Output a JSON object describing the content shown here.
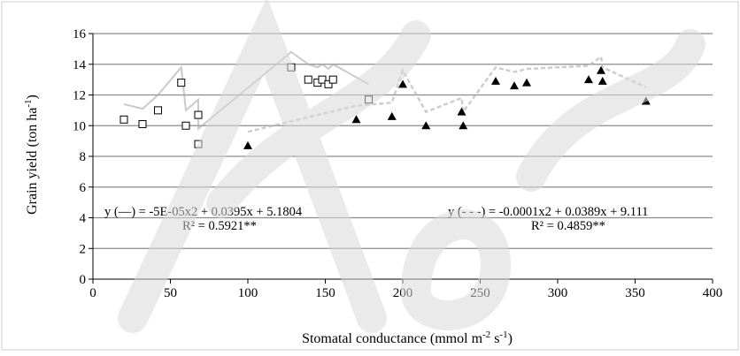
{
  "chart_data": {
    "type": "scatter",
    "xlabel": "Stomatal conductance (mmol m",
    "xlabel_sup1": "-2",
    "xlabel_mid": " s",
    "xlabel_sup2": "-1",
    "xlabel_end": ")",
    "ylabel": "Grain yield (ton ha",
    "ylabel_sup": "-1",
    "ylabel_end": ")",
    "xlim": [
      0,
      400
    ],
    "ylim": [
      0,
      16
    ],
    "xticks": [
      0,
      50,
      100,
      150,
      200,
      250,
      300,
      350,
      400
    ],
    "yticks": [
      0,
      2,
      4,
      6,
      8,
      10,
      12,
      14,
      16
    ],
    "grid": "horizontal",
    "series": [
      {
        "marker": "open-square",
        "points": [
          [
            20,
            10.4
          ],
          [
            32,
            10.1
          ],
          [
            42,
            11.0
          ],
          [
            57,
            12.8
          ],
          [
            60,
            10.0
          ],
          [
            68,
            10.7
          ],
          [
            68,
            8.8
          ],
          [
            128,
            13.8
          ],
          [
            139,
            13.0
          ],
          [
            145,
            12.8
          ],
          [
            148,
            13.0
          ],
          [
            152,
            12.7
          ],
          [
            155,
            13.0
          ],
          [
            178,
            11.7
          ]
        ]
      },
      {
        "marker": "filled-triangle",
        "points": [
          [
            100,
            8.7
          ],
          [
            170,
            10.4
          ],
          [
            193,
            10.6
          ],
          [
            200,
            12.7
          ],
          [
            215,
            10.0
          ],
          [
            238,
            10.9
          ],
          [
            239,
            10.0
          ],
          [
            260,
            12.9
          ],
          [
            272,
            12.6
          ],
          [
            280,
            12.8
          ],
          [
            320,
            13.0
          ],
          [
            328,
            13.6
          ],
          [
            329,
            12.9
          ],
          [
            357,
            11.6
          ]
        ]
      }
    ],
    "annotations": {
      "eq1": "y (—) = -5E-05x2 + 0.0395x + 5.1804",
      "r2_1": "R² = 0.5921**",
      "eq2": "y (- - -) = -0.0001x2 + 0.0389x + 9.111",
      "r2_2": "R² = 0.4859**"
    },
    "colors": {
      "grid": "#8c8c8c",
      "axis": "#000000",
      "trend_solid": "#a6a6a6",
      "trend_dashed": "#b8b8b8",
      "watermark": "#d9d9d9"
    }
  }
}
